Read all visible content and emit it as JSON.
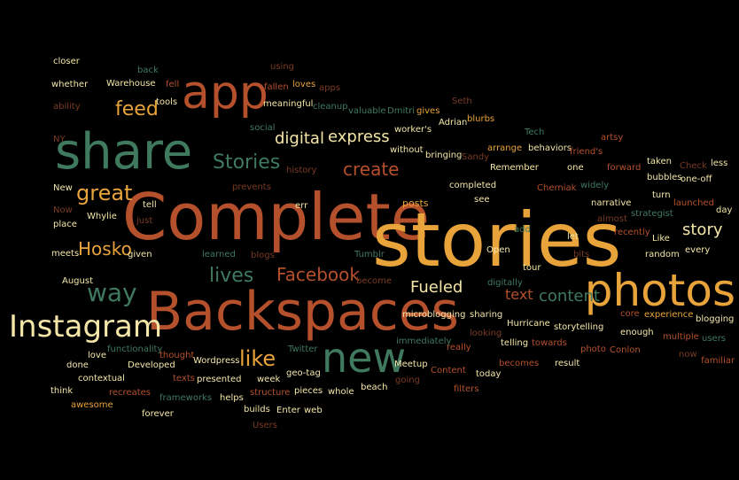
{
  "palette": {
    "background": "#000000",
    "orange": "#E8A33A",
    "rust": "#B5502C",
    "green": "#3F7A5F",
    "cream": "#F4E6A8",
    "dim_rust": "#7A3A22",
    "dim_green": "#2E5A46"
  },
  "words": [
    {
      "text": "Complete"
    },
    {
      "text": "stories"
    },
    {
      "text": "Backspaces"
    },
    {
      "text": "share"
    },
    {
      "text": "photos"
    },
    {
      "text": "app"
    },
    {
      "text": "Instagram"
    },
    {
      "text": "new"
    },
    {
      "text": "way"
    },
    {
      "text": "great"
    },
    {
      "text": "Facebook"
    },
    {
      "text": "Hosko"
    },
    {
      "text": "lives"
    },
    {
      "text": "like"
    },
    {
      "text": "feed"
    },
    {
      "text": "Stories"
    },
    {
      "text": "create"
    },
    {
      "text": "digital"
    },
    {
      "text": "express"
    },
    {
      "text": "content"
    },
    {
      "text": "text"
    },
    {
      "text": "Fueled"
    },
    {
      "text": "story"
    },
    {
      "text": "posts"
    },
    {
      "text": "closer"
    },
    {
      "text": "whether"
    },
    {
      "text": "ability"
    },
    {
      "text": "NY"
    },
    {
      "text": "back"
    },
    {
      "text": "Warehouse"
    },
    {
      "text": "fell"
    },
    {
      "text": "tools"
    },
    {
      "text": "using"
    },
    {
      "text": "fallen"
    },
    {
      "text": "loves"
    },
    {
      "text": "apps"
    },
    {
      "text": "meaningful"
    },
    {
      "text": "cleanup"
    },
    {
      "text": "valuable"
    },
    {
      "text": "Dmitri"
    },
    {
      "text": "gives"
    },
    {
      "text": "Seth"
    },
    {
      "text": "Adrian"
    },
    {
      "text": "blurbs"
    },
    {
      "text": "worker's"
    },
    {
      "text": "social"
    },
    {
      "text": "Tech"
    },
    {
      "text": "bringing"
    },
    {
      "text": "without"
    },
    {
      "text": "arrange"
    },
    {
      "text": "behaviors"
    },
    {
      "text": "friend's"
    },
    {
      "text": "artsy"
    },
    {
      "text": "Sandy"
    },
    {
      "text": "Remember"
    },
    {
      "text": "one"
    },
    {
      "text": "forward"
    },
    {
      "text": "taken"
    },
    {
      "text": "history"
    },
    {
      "text": "Check"
    },
    {
      "text": "less"
    },
    {
      "text": "New"
    },
    {
      "text": "prevents"
    },
    {
      "text": "completed"
    },
    {
      "text": "Cherniak"
    },
    {
      "text": "widely"
    },
    {
      "text": "bubbles"
    },
    {
      "text": "one-off"
    },
    {
      "text": "tell"
    },
    {
      "text": "Now"
    },
    {
      "text": "Whylie"
    },
    {
      "text": "place"
    },
    {
      "text": "just"
    },
    {
      "text": "err"
    },
    {
      "text": "see"
    },
    {
      "text": "narrative"
    },
    {
      "text": "turn"
    },
    {
      "text": "launched"
    },
    {
      "text": "day"
    },
    {
      "text": "strategist"
    },
    {
      "text": "almost"
    },
    {
      "text": "add"
    },
    {
      "text": "recently"
    },
    {
      "text": "let"
    },
    {
      "text": "Like"
    },
    {
      "text": "every"
    },
    {
      "text": "Open"
    },
    {
      "text": "random"
    },
    {
      "text": "given"
    },
    {
      "text": "meets"
    },
    {
      "text": "learned"
    },
    {
      "text": "blogs"
    },
    {
      "text": "Tumblr"
    },
    {
      "text": "bits"
    },
    {
      "text": "tour"
    },
    {
      "text": "August"
    },
    {
      "text": "become"
    },
    {
      "text": "digitally"
    },
    {
      "text": "microblogging"
    },
    {
      "text": "core"
    },
    {
      "text": "experience"
    },
    {
      "text": "blogging"
    },
    {
      "text": "sharing"
    },
    {
      "text": "Hurricane"
    },
    {
      "text": "storytelling"
    },
    {
      "text": "enough"
    },
    {
      "text": "multiple"
    },
    {
      "text": "users"
    },
    {
      "text": "looking"
    },
    {
      "text": "telling"
    },
    {
      "text": "towards"
    },
    {
      "text": "now"
    },
    {
      "text": "familiar"
    },
    {
      "text": "love"
    },
    {
      "text": "functionality"
    },
    {
      "text": "thought"
    },
    {
      "text": "Twitter"
    },
    {
      "text": "immediately"
    },
    {
      "text": "really"
    },
    {
      "text": "Conlon"
    },
    {
      "text": "done"
    },
    {
      "text": "Developed"
    },
    {
      "text": "Wordpress"
    },
    {
      "text": "geo-tag"
    },
    {
      "text": "Meetup"
    },
    {
      "text": "photo"
    },
    {
      "text": "result"
    },
    {
      "text": "contextual"
    },
    {
      "text": "texts"
    },
    {
      "text": "presented"
    },
    {
      "text": "week"
    },
    {
      "text": "going"
    },
    {
      "text": "Content"
    },
    {
      "text": "today"
    },
    {
      "text": "becomes"
    },
    {
      "text": "think"
    },
    {
      "text": "recreates"
    },
    {
      "text": "helps"
    },
    {
      "text": "structure"
    },
    {
      "text": "pieces"
    },
    {
      "text": "whole"
    },
    {
      "text": "beach"
    },
    {
      "text": "filters"
    },
    {
      "text": "awesome"
    },
    {
      "text": "frameworks"
    },
    {
      "text": "builds"
    },
    {
      "text": "Enter"
    },
    {
      "text": "web"
    },
    {
      "text": "forever"
    },
    {
      "text": "Users"
    }
  ]
}
